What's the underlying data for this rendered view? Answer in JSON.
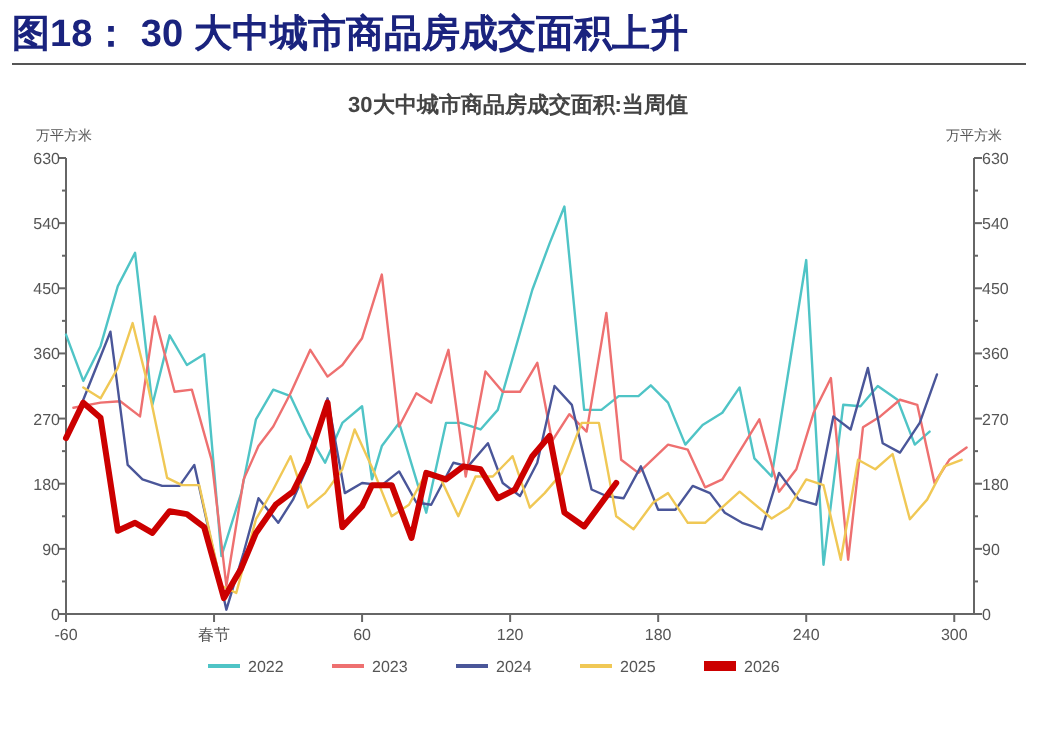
{
  "chart_data": {
    "type": "line",
    "title": "图18：  30 大中城市商品房成交面积上升",
    "subtitle": "30大中城市商品房成交面积:当周值",
    "ylabel": "万平方米",
    "y2label": "万平方米",
    "xlim": [
      -60,
      308
    ],
    "xticks": [
      -60,
      {
        "value": 0,
        "label": "春节"
      },
      60,
      120,
      180,
      240,
      300
    ],
    "ylim": [
      0,
      630
    ],
    "yticks": [
      0,
      {
        "value": 45,
        "label": null
      },
      90,
      {
        "value": 135,
        "label": null
      },
      180,
      {
        "value": 225,
        "label": null
      },
      270,
      {
        "value": 315,
        "label": null
      },
      360,
      {
        "value": 405,
        "label": null
      },
      450,
      {
        "value": 495,
        "label": null
      },
      540,
      {
        "value": 585,
        "label": null
      },
      630
    ],
    "y2lim": [
      0,
      630
    ],
    "y2ticks": [
      0,
      {
        "value": 45,
        "label": null
      },
      90,
      {
        "value": 135,
        "label": null
      },
      180,
      {
        "value": 225,
        "label": null
      },
      270,
      {
        "value": 315,
        "label": null
      },
      360,
      {
        "value": 405,
        "label": null
      },
      450,
      {
        "value": 495,
        "label": null
      },
      540,
      {
        "value": 585,
        "label": null
      },
      630
    ],
    "grid": false,
    "legend": "bottom",
    "marker": "none",
    "line_style": "solid",
    "series": [
      {
        "name": "2022",
        "color": "#4fc4c6",
        "x": [
          -60,
          -53,
          -46,
          -39,
          -32,
          -25,
          -18,
          -11,
          -4,
          3,
          11,
          17,
          24,
          31,
          38,
          45,
          52,
          60,
          64,
          68,
          75,
          86,
          94,
          100,
          108,
          115,
          129,
          136,
          142,
          150,
          157,
          164,
          172,
          177,
          184,
          191,
          198,
          206,
          213,
          219,
          226,
          240,
          247,
          255,
          262,
          269,
          277,
          284,
          290
        ],
        "values": [
          386,
          322,
          370,
          453,
          499,
          289,
          385,
          344,
          359,
          80,
          167,
          269,
          310,
          301,
          250,
          209,
          264,
          287,
          186,
          232,
          264,
          140,
          264,
          264,
          255,
          282,
          448,
          512,
          563,
          282,
          282,
          301,
          301,
          316,
          292,
          234,
          261,
          278,
          313,
          215,
          190,
          489,
          68,
          289,
          287,
          315,
          296,
          234,
          252
        ]
      },
      {
        "name": "2023",
        "color": "#ee7070",
        "x": [
          -57,
          -46,
          -38,
          -30,
          -24,
          -16,
          -9,
          -1,
          5,
          12,
          18,
          24,
          31,
          39,
          46,
          52,
          60,
          68,
          75,
          82,
          88,
          95,
          102,
          110,
          117,
          124,
          131,
          137,
          144,
          151,
          159,
          165,
          172,
          184,
          192,
          199,
          206,
          221,
          229,
          236,
          243,
          250,
          257,
          263,
          270,
          278,
          285,
          292,
          298,
          305
        ],
        "values": [
          285,
          292,
          294,
          273,
          411,
          307,
          310,
          213,
          39,
          186,
          232,
          259,
          305,
          365,
          328,
          344,
          381,
          469,
          259,
          305,
          292,
          365,
          190,
          335,
          307,
          307,
          347,
          239,
          276,
          252,
          416,
          213,
          195,
          234,
          227,
          175,
          186,
          269,
          169,
          200,
          278,
          326,
          75,
          258,
          273,
          296,
          289,
          181,
          213,
          230
        ]
      },
      {
        "name": "2024",
        "color": "#4a5699",
        "x": [
          -53,
          -42,
          -35,
          -29,
          -21,
          -14,
          -8,
          5,
          12,
          18,
          26,
          32,
          38,
          46,
          53,
          60,
          68,
          75,
          82,
          88,
          97,
          103,
          111,
          117,
          124,
          131,
          138,
          145,
          153,
          159,
          166,
          173,
          180,
          187,
          194,
          201,
          207,
          214,
          222,
          229,
          237,
          244,
          251,
          258,
          265,
          271,
          278,
          286,
          293
        ],
        "values": [
          296,
          390,
          206,
          186,
          177,
          177,
          206,
          6,
          85,
          160,
          126,
          158,
          204,
          298,
          167,
          181,
          178,
          197,
          154,
          151,
          209,
          204,
          236,
          181,
          163,
          209,
          315,
          289,
          172,
          163,
          160,
          204,
          144,
          144,
          177,
          167,
          140,
          126,
          117,
          195,
          158,
          151,
          273,
          255,
          340,
          236,
          223,
          264,
          331
        ]
      },
      {
        "name": "2025",
        "color": "#f0c855",
        "x": [
          -53,
          -46,
          -39,
          -33,
          -27,
          -19,
          -13,
          -6,
          3,
          9,
          17,
          24,
          31,
          38,
          45,
          52,
          57,
          65,
          72,
          79,
          86,
          92,
          99,
          106,
          113,
          121,
          128,
          134,
          141,
          149,
          156,
          163,
          170,
          178,
          184,
          192,
          199,
          213,
          226,
          233,
          240,
          247,
          254,
          261,
          268,
          275,
          282,
          289,
          296,
          303
        ],
        "values": [
          313,
          298,
          340,
          402,
          319,
          188,
          178,
          178,
          39,
          29,
          131,
          172,
          218,
          147,
          167,
          200,
          255,
          195,
          135,
          151,
          195,
          186,
          135,
          190,
          190,
          218,
          147,
          167,
          195,
          264,
          264,
          135,
          117,
          154,
          167,
          126,
          126,
          169,
          132,
          147,
          186,
          178,
          75,
          213,
          200,
          221,
          131,
          158,
          204,
          213
        ]
      },
      {
        "name": "2026",
        "color": "#cc0000",
        "x": [
          -60,
          -53,
          -46,
          -39,
          -32,
          -25,
          -18,
          -11,
          -4,
          4,
          11,
          17,
          25,
          32,
          38,
          46,
          52,
          60,
          64,
          72,
          80,
          86,
          94,
          101,
          108,
          115,
          122,
          129,
          136,
          142,
          150,
          163
        ],
        "values": [
          243,
          292,
          271,
          115,
          126,
          112,
          142,
          138,
          120,
          22,
          63,
          112,
          151,
          169,
          210,
          292,
          120,
          149,
          178,
          178,
          105,
          195,
          186,
          204,
          200,
          160,
          172,
          218,
          246,
          140,
          121,
          181
        ]
      }
    ]
  }
}
